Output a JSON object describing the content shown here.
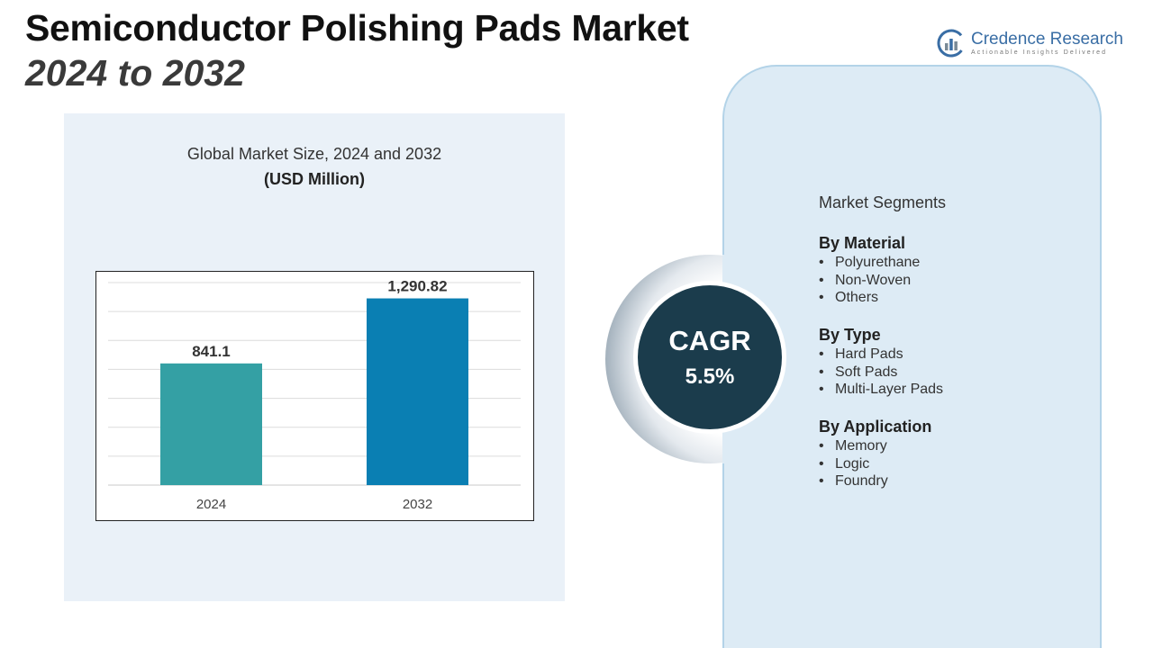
{
  "header": {
    "title": "Semiconductor Polishing Pads Market",
    "subtitle": "2024 to 2032"
  },
  "logo": {
    "name": "Credence Research",
    "tagline": "Actionable Insights Delivered"
  },
  "colors": {
    "bar_2024": "#34a0a4",
    "bar_2032": "#0a7fb3",
    "cagr_circle": "#1b3c4c",
    "panel_bg": "#eaf1f8",
    "segment_card_bg": "#ddebf5"
  },
  "chart_data": {
    "type": "bar",
    "title": "Global Market Size, 2024 and 2032",
    "unit_label": "(USD Million)",
    "categories": [
      "2024",
      "2032"
    ],
    "values": [
      841.1,
      1290.82
    ],
    "value_labels": [
      "841.1",
      "1,290.82"
    ],
    "ylim": [
      0,
      1400
    ],
    "grid": true,
    "legend": "none"
  },
  "cagr": {
    "label": "CAGR",
    "value": "5.5%"
  },
  "segments": {
    "heading": "Market Segments",
    "groups": [
      {
        "title": "By Material",
        "items": [
          "Polyurethane",
          "Non-Woven",
          "Others"
        ]
      },
      {
        "title": "By Type",
        "items": [
          "Hard Pads",
          "Soft Pads",
          "Multi-Layer Pads"
        ]
      },
      {
        "title": "By Application",
        "items": [
          "Memory",
          "Logic",
          "Foundry"
        ]
      }
    ]
  }
}
